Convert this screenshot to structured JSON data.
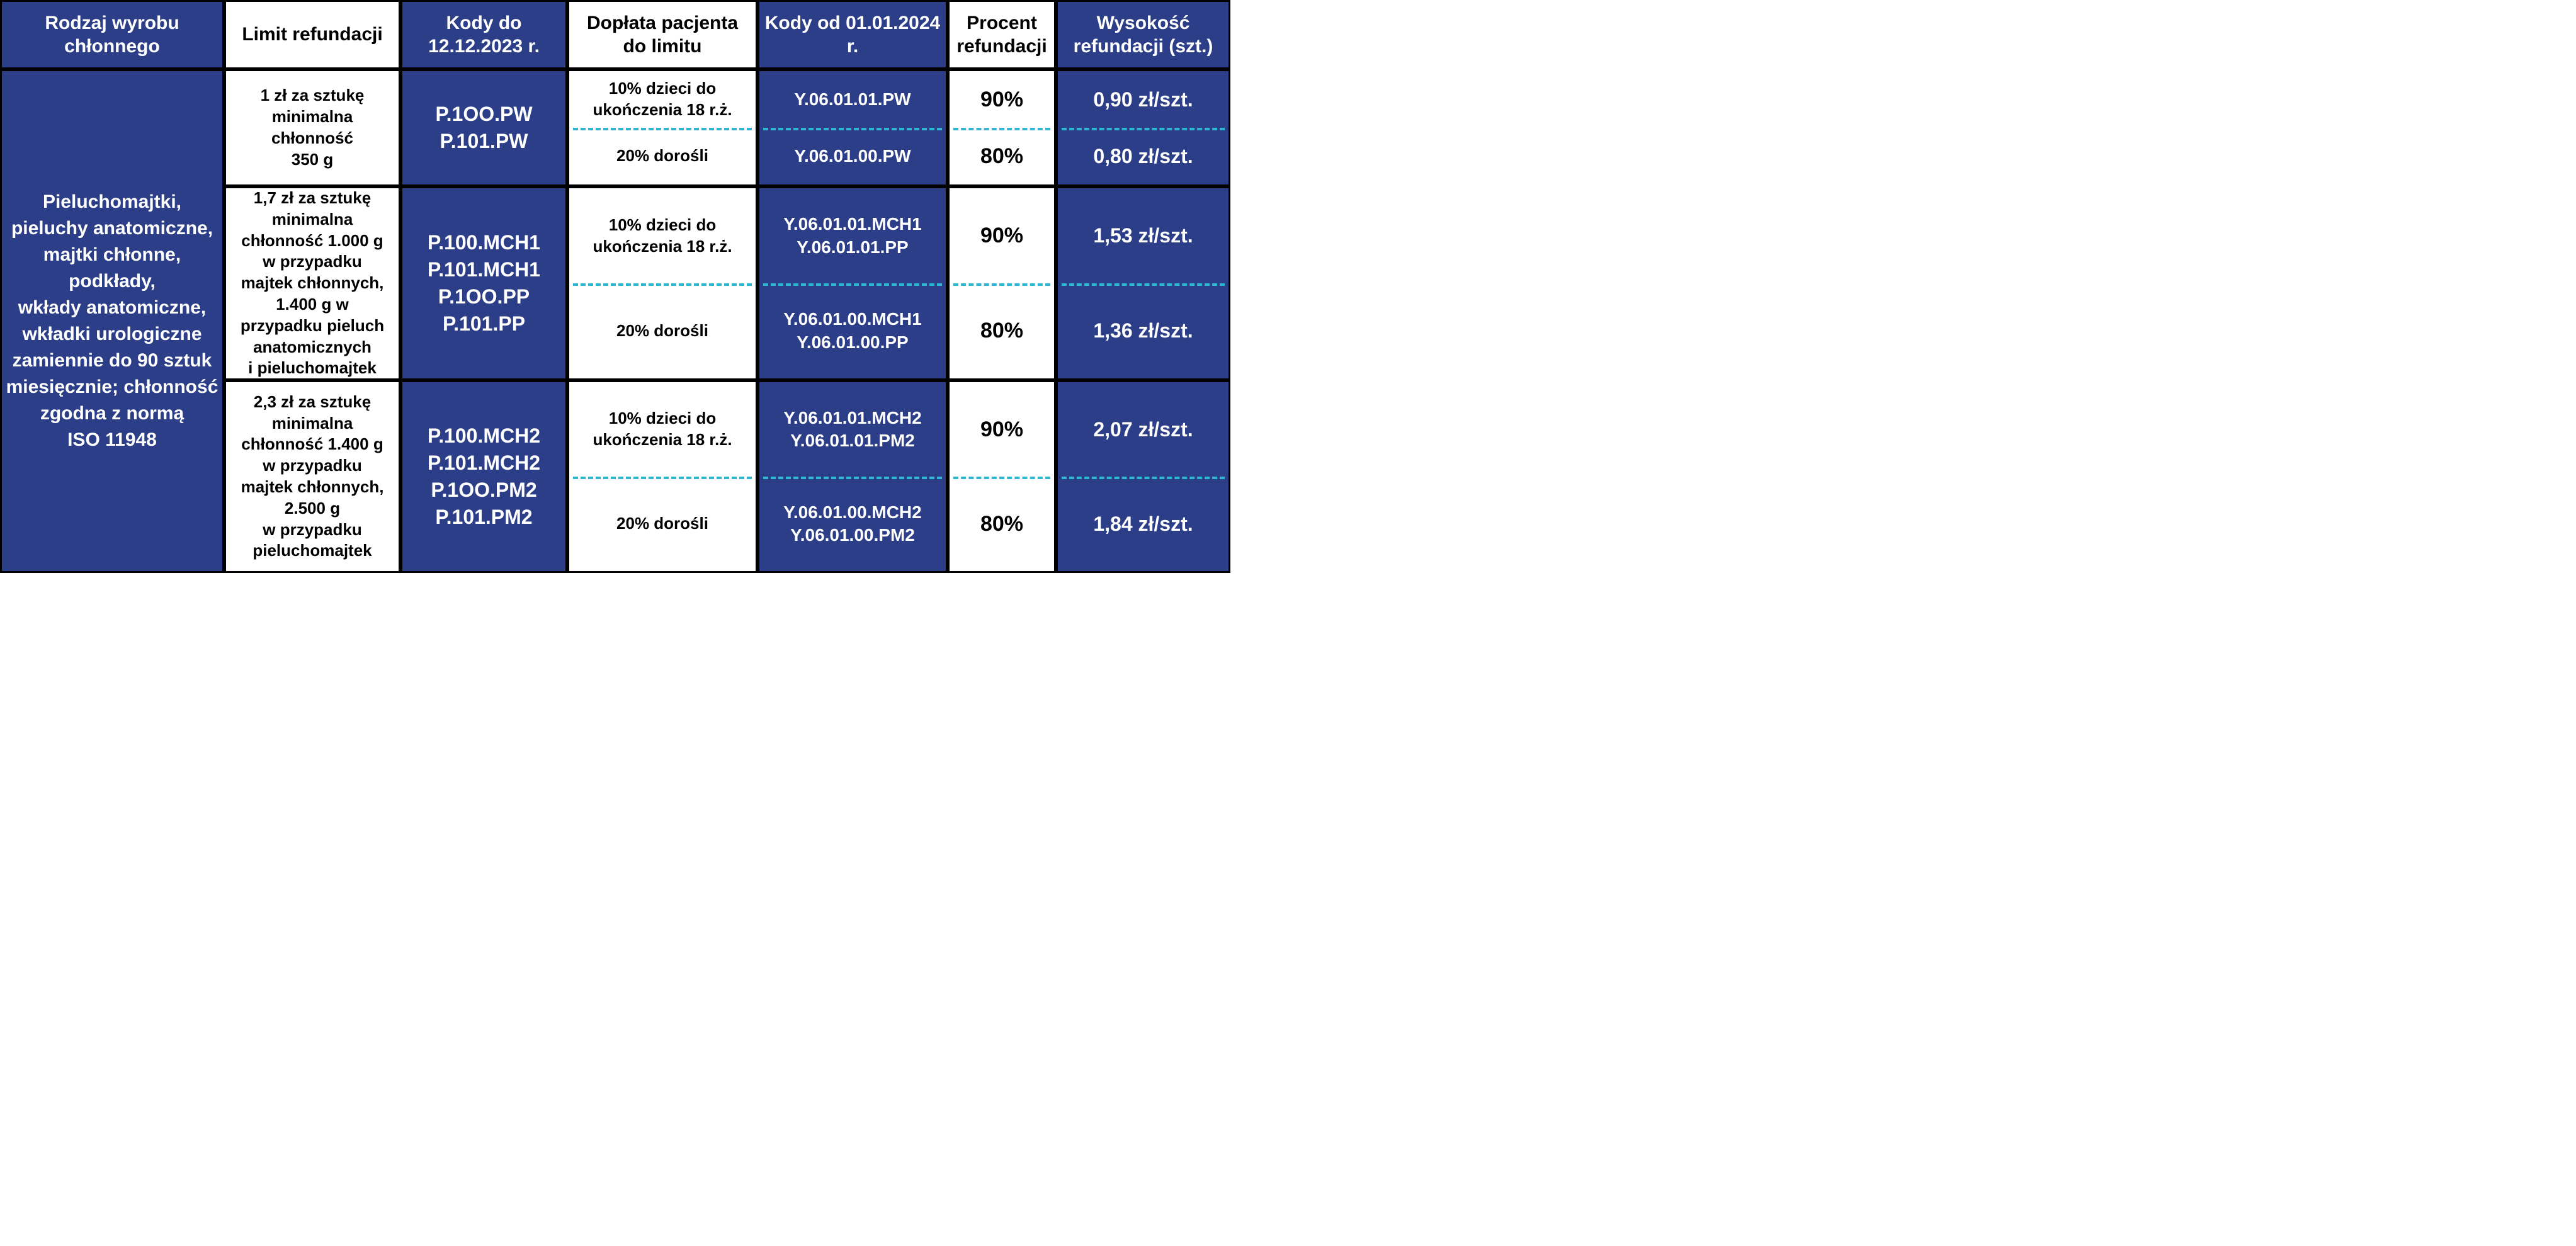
{
  "colors": {
    "blue_bg": "#2c3e87",
    "white_bg": "#ffffff",
    "text_on_blue": "#ffffff",
    "text_on_white": "#000000",
    "dash": "#30b6d1",
    "border": "#000000"
  },
  "headers": {
    "c0": "Rodzaj wyrobu chłonnego",
    "c1": "Limit refundacji",
    "c2": "Kody do 12.12.2023 r.",
    "c3": "Dopłata pacjenta do limitu",
    "c4": "Kody od 01.01.2024 r.",
    "c5": "Procent refundacji",
    "c6": "Wysokość refundacji (szt.)"
  },
  "row_label": "Pieluchomajtki,\npieluchy anatomiczne,\nmajtki chłonne,\npodkłady,\nwkłady anatomiczne,\nwkładki urologiczne\nzamiennie do 90 sztuk\nmiesięcznie; chłonność\nzgodna z normą\nISO 11948",
  "groups": [
    {
      "limit": "1 zł za sztukę\nminimalna\nchłonność\n350 g",
      "codes_old": "P.1OO.PW\nP.101.PW",
      "top": {
        "doplata": "10% dzieci do\nukończenia 18 r.ż.",
        "codes_new": "Y.06.01.01.PW",
        "procent": "90%",
        "wys": "0,90 zł/szt."
      },
      "bot": {
        "doplata": "20% dorośli",
        "codes_new": "Y.06.01.00.PW",
        "procent": "80%",
        "wys": "0,80 zł/szt."
      }
    },
    {
      "limit": "1,7 zł za sztukę\nminimalna\nchłonność 1.000 g\nw przypadku\nmajtek chłonnych,\n1.400 g w\nprzypadku pieluch\nanatomicznych\ni pieluchomajtek",
      "codes_old": "P.100.MCH1\nP.101.MCH1\nP.1OO.PP\nP.101.PP",
      "top": {
        "doplata": "10% dzieci do\nukończenia 18 r.ż.",
        "codes_new": "Y.06.01.01.MCH1\nY.06.01.01.PP",
        "procent": "90%",
        "wys": "1,53 zł/szt."
      },
      "bot": {
        "doplata": "20% dorośli",
        "codes_new": "Y.06.01.00.MCH1\nY.06.01.00.PP",
        "procent": "80%",
        "wys": "1,36 zł/szt."
      }
    },
    {
      "limit": "2,3 zł za sztukę\nminimalna\nchłonność 1.400 g\nw przypadku\nmajtek chłonnych,\n2.500 g\nw przypadku\npieluchomajtek",
      "codes_old": "P.100.MCH2\nP.101.MCH2\nP.1OO.PM2\nP.101.PM2",
      "top": {
        "doplata": "10% dzieci do\nukończenia 18 r.ż.",
        "codes_new": "Y.06.01.01.MCH2\nY.06.01.01.PM2",
        "procent": "90%",
        "wys": "2,07 zł/szt."
      },
      "bot": {
        "doplata": "20% dorośli",
        "codes_new": "Y.06.01.00.MCH2\nY.06.01.00.PM2",
        "procent": "80%",
        "wys": "1,84 zł/szt."
      }
    }
  ]
}
